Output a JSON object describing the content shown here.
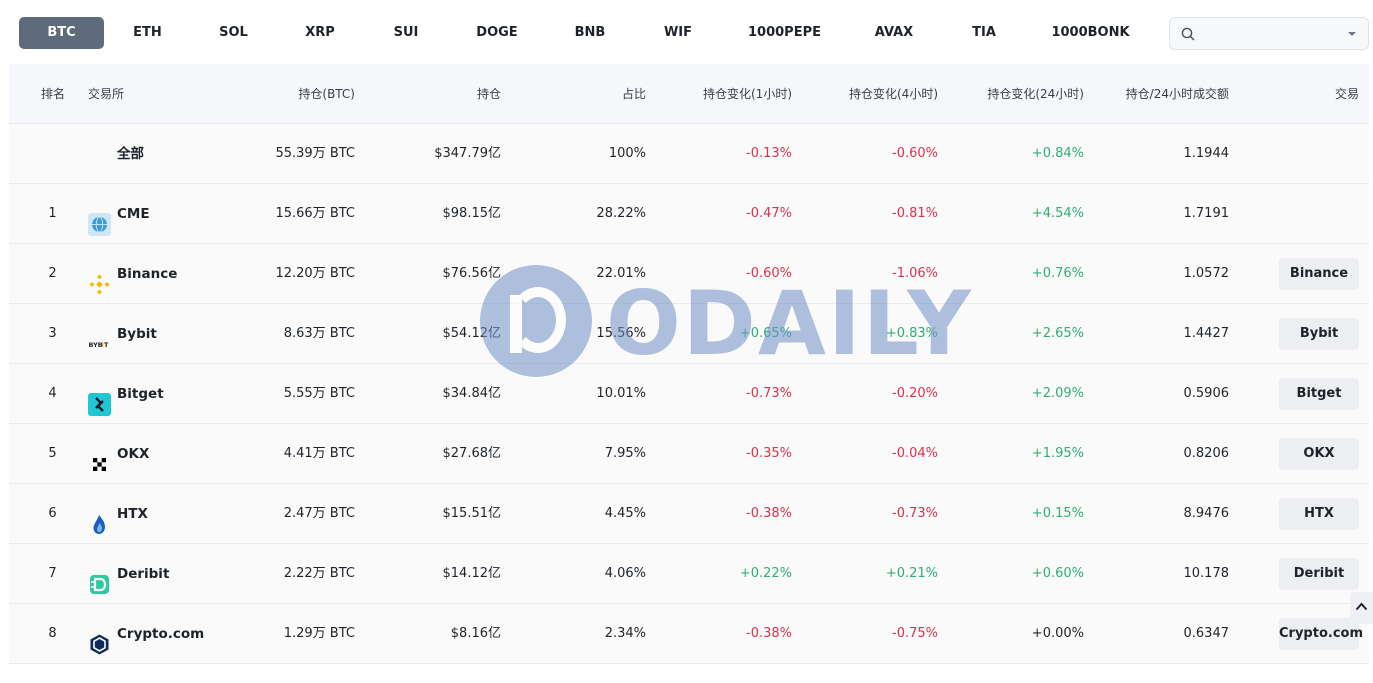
{
  "tabs": [
    "BTC",
    "ETH",
    "SOL",
    "XRP",
    "SUI",
    "DOGE",
    "BNB",
    "WIF",
    "1000PEPE",
    "AVAX",
    "TIA",
    "1000BONK"
  ],
  "active_tab": "BTC",
  "search": {
    "value": "",
    "placeholder": ""
  },
  "headers": {
    "rank": "排名",
    "exchange": "交易所",
    "oi_btc": "持仓(BTC)",
    "oi_usd": "持仓",
    "share": "占比",
    "chg_1h": "持仓变化(1小时)",
    "chg_4h": "持仓变化(4小时)",
    "chg_24h": "持仓变化(24小时)",
    "oi_vol_ratio": "持仓/24小时成交额",
    "trade": "交易"
  },
  "rows": [
    {
      "rank": "",
      "exchange": "全部",
      "logo": "none",
      "oi_btc": "55.39万 BTC",
      "oi_usd": "$347.79亿",
      "share": "100%",
      "chg_1h": "-0.13%",
      "chg_4h": "-0.60%",
      "chg_24h": "+0.84%",
      "ratio": "1.1944",
      "trade": ""
    },
    {
      "rank": "1",
      "exchange": "CME",
      "logo": "cme-globe-icon",
      "oi_btc": "15.66万 BTC",
      "oi_usd": "$98.15亿",
      "share": "28.22%",
      "chg_1h": "-0.47%",
      "chg_4h": "-0.81%",
      "chg_24h": "+4.54%",
      "ratio": "1.7191",
      "trade": ""
    },
    {
      "rank": "2",
      "exchange": "Binance",
      "logo": "binance-logo-icon",
      "oi_btc": "12.20万 BTC",
      "oi_usd": "$76.56亿",
      "share": "22.01%",
      "chg_1h": "-0.60%",
      "chg_4h": "-1.06%",
      "chg_24h": "+0.76%",
      "ratio": "1.0572",
      "trade": "Binance"
    },
    {
      "rank": "3",
      "exchange": "Bybit",
      "logo": "bybit-logo-icon",
      "oi_btc": "8.63万 BTC",
      "oi_usd": "$54.12亿",
      "share": "15.56%",
      "chg_1h": "+0.65%",
      "chg_4h": "+0.83%",
      "chg_24h": "+2.65%",
      "ratio": "1.4427",
      "trade": "Bybit"
    },
    {
      "rank": "4",
      "exchange": "Bitget",
      "logo": "bitget-logo-icon",
      "oi_btc": "5.55万 BTC",
      "oi_usd": "$34.84亿",
      "share": "10.01%",
      "chg_1h": "-0.73%",
      "chg_4h": "-0.20%",
      "chg_24h": "+2.09%",
      "ratio": "0.5906",
      "trade": "Bitget"
    },
    {
      "rank": "5",
      "exchange": "OKX",
      "logo": "okx-logo-icon",
      "oi_btc": "4.41万 BTC",
      "oi_usd": "$27.68亿",
      "share": "7.95%",
      "chg_1h": "-0.35%",
      "chg_4h": "-0.04%",
      "chg_24h": "+1.95%",
      "ratio": "0.8206",
      "trade": "OKX"
    },
    {
      "rank": "6",
      "exchange": "HTX",
      "logo": "htx-flame-icon",
      "oi_btc": "2.47万 BTC",
      "oi_usd": "$15.51亿",
      "share": "4.45%",
      "chg_1h": "-0.38%",
      "chg_4h": "-0.73%",
      "chg_24h": "+0.15%",
      "ratio": "8.9476",
      "trade": "HTX"
    },
    {
      "rank": "7",
      "exchange": "Deribit",
      "logo": "deribit-logo-icon",
      "oi_btc": "2.22万 BTC",
      "oi_usd": "$14.12亿",
      "share": "4.06%",
      "chg_1h": "+0.22%",
      "chg_4h": "+0.21%",
      "chg_24h": "+0.60%",
      "ratio": "10.178",
      "trade": "Deribit"
    },
    {
      "rank": "8",
      "exchange": "Crypto.com",
      "logo": "cryptocom-logo-icon",
      "oi_btc": "1.29万 BTC",
      "oi_usd": "$8.16亿",
      "share": "2.34%",
      "chg_1h": "-0.38%",
      "chg_4h": "-0.75%",
      "chg_24h": "+0.00%",
      "ratio": "0.6347",
      "trade": "Crypto.com"
    }
  ],
  "watermark": "ODAILY",
  "colors": {
    "negative": "#e0304a",
    "positive": "#2eae74",
    "active_tab": "#5f6b7a"
  }
}
